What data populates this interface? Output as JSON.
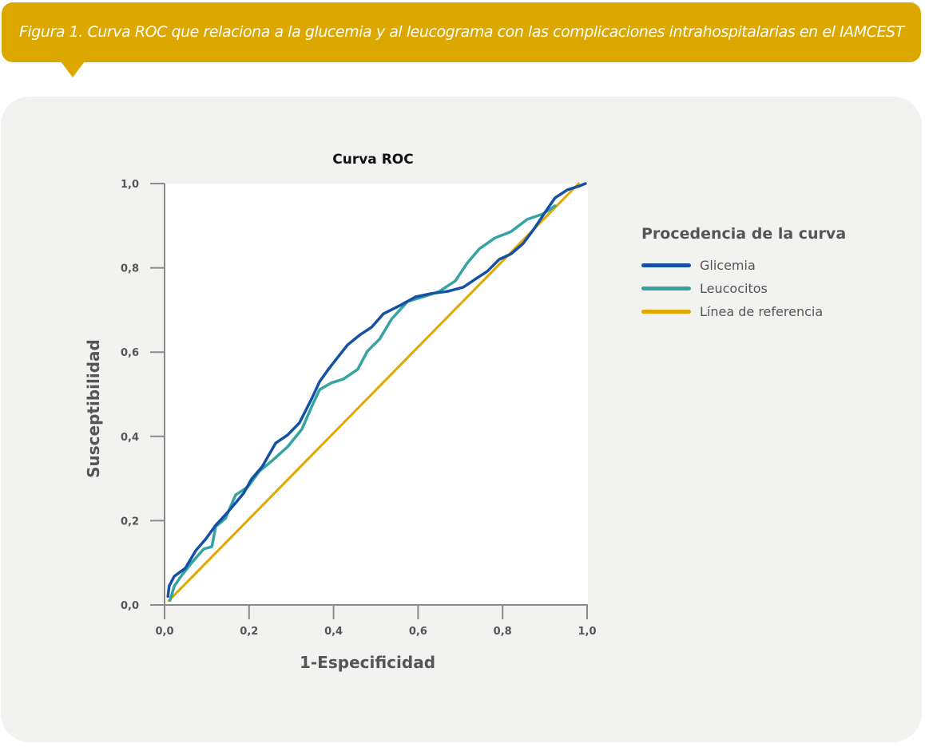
{
  "caption": {
    "text": "Figura 1. Curva ROC que relaciona a la glucemia y al leucograma con las complicaciones intrahospitalarias en el IAMCEST"
  },
  "colors": {
    "banner": "#dca800",
    "panel": "#f2f2f1",
    "glicemia": "#1450a3",
    "leucocitos": "#35a3a3",
    "referencia": "#e0a800"
  },
  "legend": {
    "title": "Procedencia de la curva",
    "items": [
      {
        "label": "Glicemia",
        "series": "glicemia"
      },
      {
        "label": "Leucocitos",
        "series": "leucocitos"
      },
      {
        "label": "Línea de referencia",
        "series": "referencia"
      }
    ]
  },
  "chart_data": {
    "type": "line",
    "title": "Curva ROC",
    "xlabel": "1-Especificidad",
    "ylabel": "Susceptibilidad",
    "xlim": [
      0,
      1
    ],
    "ylim": [
      0,
      1
    ],
    "xticks": [
      0,
      0.2,
      0.4,
      0.6,
      0.8,
      1.0
    ],
    "yticks": [
      0,
      0.2,
      0.4,
      0.6,
      0.8,
      1.0
    ],
    "xtick_labels": [
      "0,0",
      "0,2",
      "0,4",
      "0,6",
      "0,8",
      "1,0"
    ],
    "ytick_labels": [
      "0,0",
      "0,2",
      "0,4",
      "0,6",
      "0,8",
      "1,0"
    ],
    "grid": false,
    "legend_position": "right",
    "series": [
      {
        "name": "Glicemia",
        "key": "glicemia",
        "points": [
          [
            0.008,
            0.02
          ],
          [
            0.011,
            0.045
          ],
          [
            0.023,
            0.068
          ],
          [
            0.049,
            0.087
          ],
          [
            0.074,
            0.129
          ],
          [
            0.098,
            0.157
          ],
          [
            0.121,
            0.189
          ],
          [
            0.144,
            0.214
          ],
          [
            0.168,
            0.242
          ],
          [
            0.187,
            0.265
          ],
          [
            0.206,
            0.299
          ],
          [
            0.231,
            0.328
          ],
          [
            0.263,
            0.384
          ],
          [
            0.291,
            0.403
          ],
          [
            0.319,
            0.432
          ],
          [
            0.348,
            0.489
          ],
          [
            0.367,
            0.53
          ],
          [
            0.389,
            0.561
          ],
          [
            0.414,
            0.593
          ],
          [
            0.433,
            0.617
          ],
          [
            0.461,
            0.64
          ],
          [
            0.49,
            0.659
          ],
          [
            0.518,
            0.691
          ],
          [
            0.556,
            0.71
          ],
          [
            0.594,
            0.731
          ],
          [
            0.631,
            0.739
          ],
          [
            0.669,
            0.744
          ],
          [
            0.707,
            0.754
          ],
          [
            0.735,
            0.773
          ],
          [
            0.764,
            0.792
          ],
          [
            0.792,
            0.82
          ],
          [
            0.82,
            0.833
          ],
          [
            0.849,
            0.858
          ],
          [
            0.877,
            0.896
          ],
          [
            0.902,
            0.934
          ],
          [
            0.924,
            0.966
          ],
          [
            0.953,
            0.985
          ],
          [
            0.981,
            0.994
          ],
          [
            0.996,
            1.0
          ]
        ]
      },
      {
        "name": "Leucocitos",
        "key": "leucocitos",
        "points": [
          [
            0.013,
            0.011
          ],
          [
            0.023,
            0.045
          ],
          [
            0.042,
            0.072
          ],
          [
            0.064,
            0.1
          ],
          [
            0.093,
            0.133
          ],
          [
            0.112,
            0.138
          ],
          [
            0.121,
            0.186
          ],
          [
            0.144,
            0.205
          ],
          [
            0.168,
            0.261
          ],
          [
            0.197,
            0.28
          ],
          [
            0.225,
            0.318
          ],
          [
            0.253,
            0.341
          ],
          [
            0.291,
            0.375
          ],
          [
            0.325,
            0.417
          ],
          [
            0.348,
            0.47
          ],
          [
            0.367,
            0.511
          ],
          [
            0.395,
            0.527
          ],
          [
            0.423,
            0.536
          ],
          [
            0.457,
            0.559
          ],
          [
            0.48,
            0.602
          ],
          [
            0.509,
            0.631
          ],
          [
            0.537,
            0.678
          ],
          [
            0.575,
            0.72
          ],
          [
            0.612,
            0.731
          ],
          [
            0.65,
            0.744
          ],
          [
            0.688,
            0.769
          ],
          [
            0.716,
            0.811
          ],
          [
            0.745,
            0.845
          ],
          [
            0.782,
            0.871
          ],
          [
            0.82,
            0.886
          ],
          [
            0.858,
            0.915
          ],
          [
            0.896,
            0.928
          ],
          [
            0.924,
            0.947
          ]
        ]
      },
      {
        "name": "Línea de referencia",
        "key": "referencia",
        "points": [
          [
            0.01,
            0.01
          ],
          [
            0.98,
            1.0
          ]
        ]
      }
    ]
  }
}
